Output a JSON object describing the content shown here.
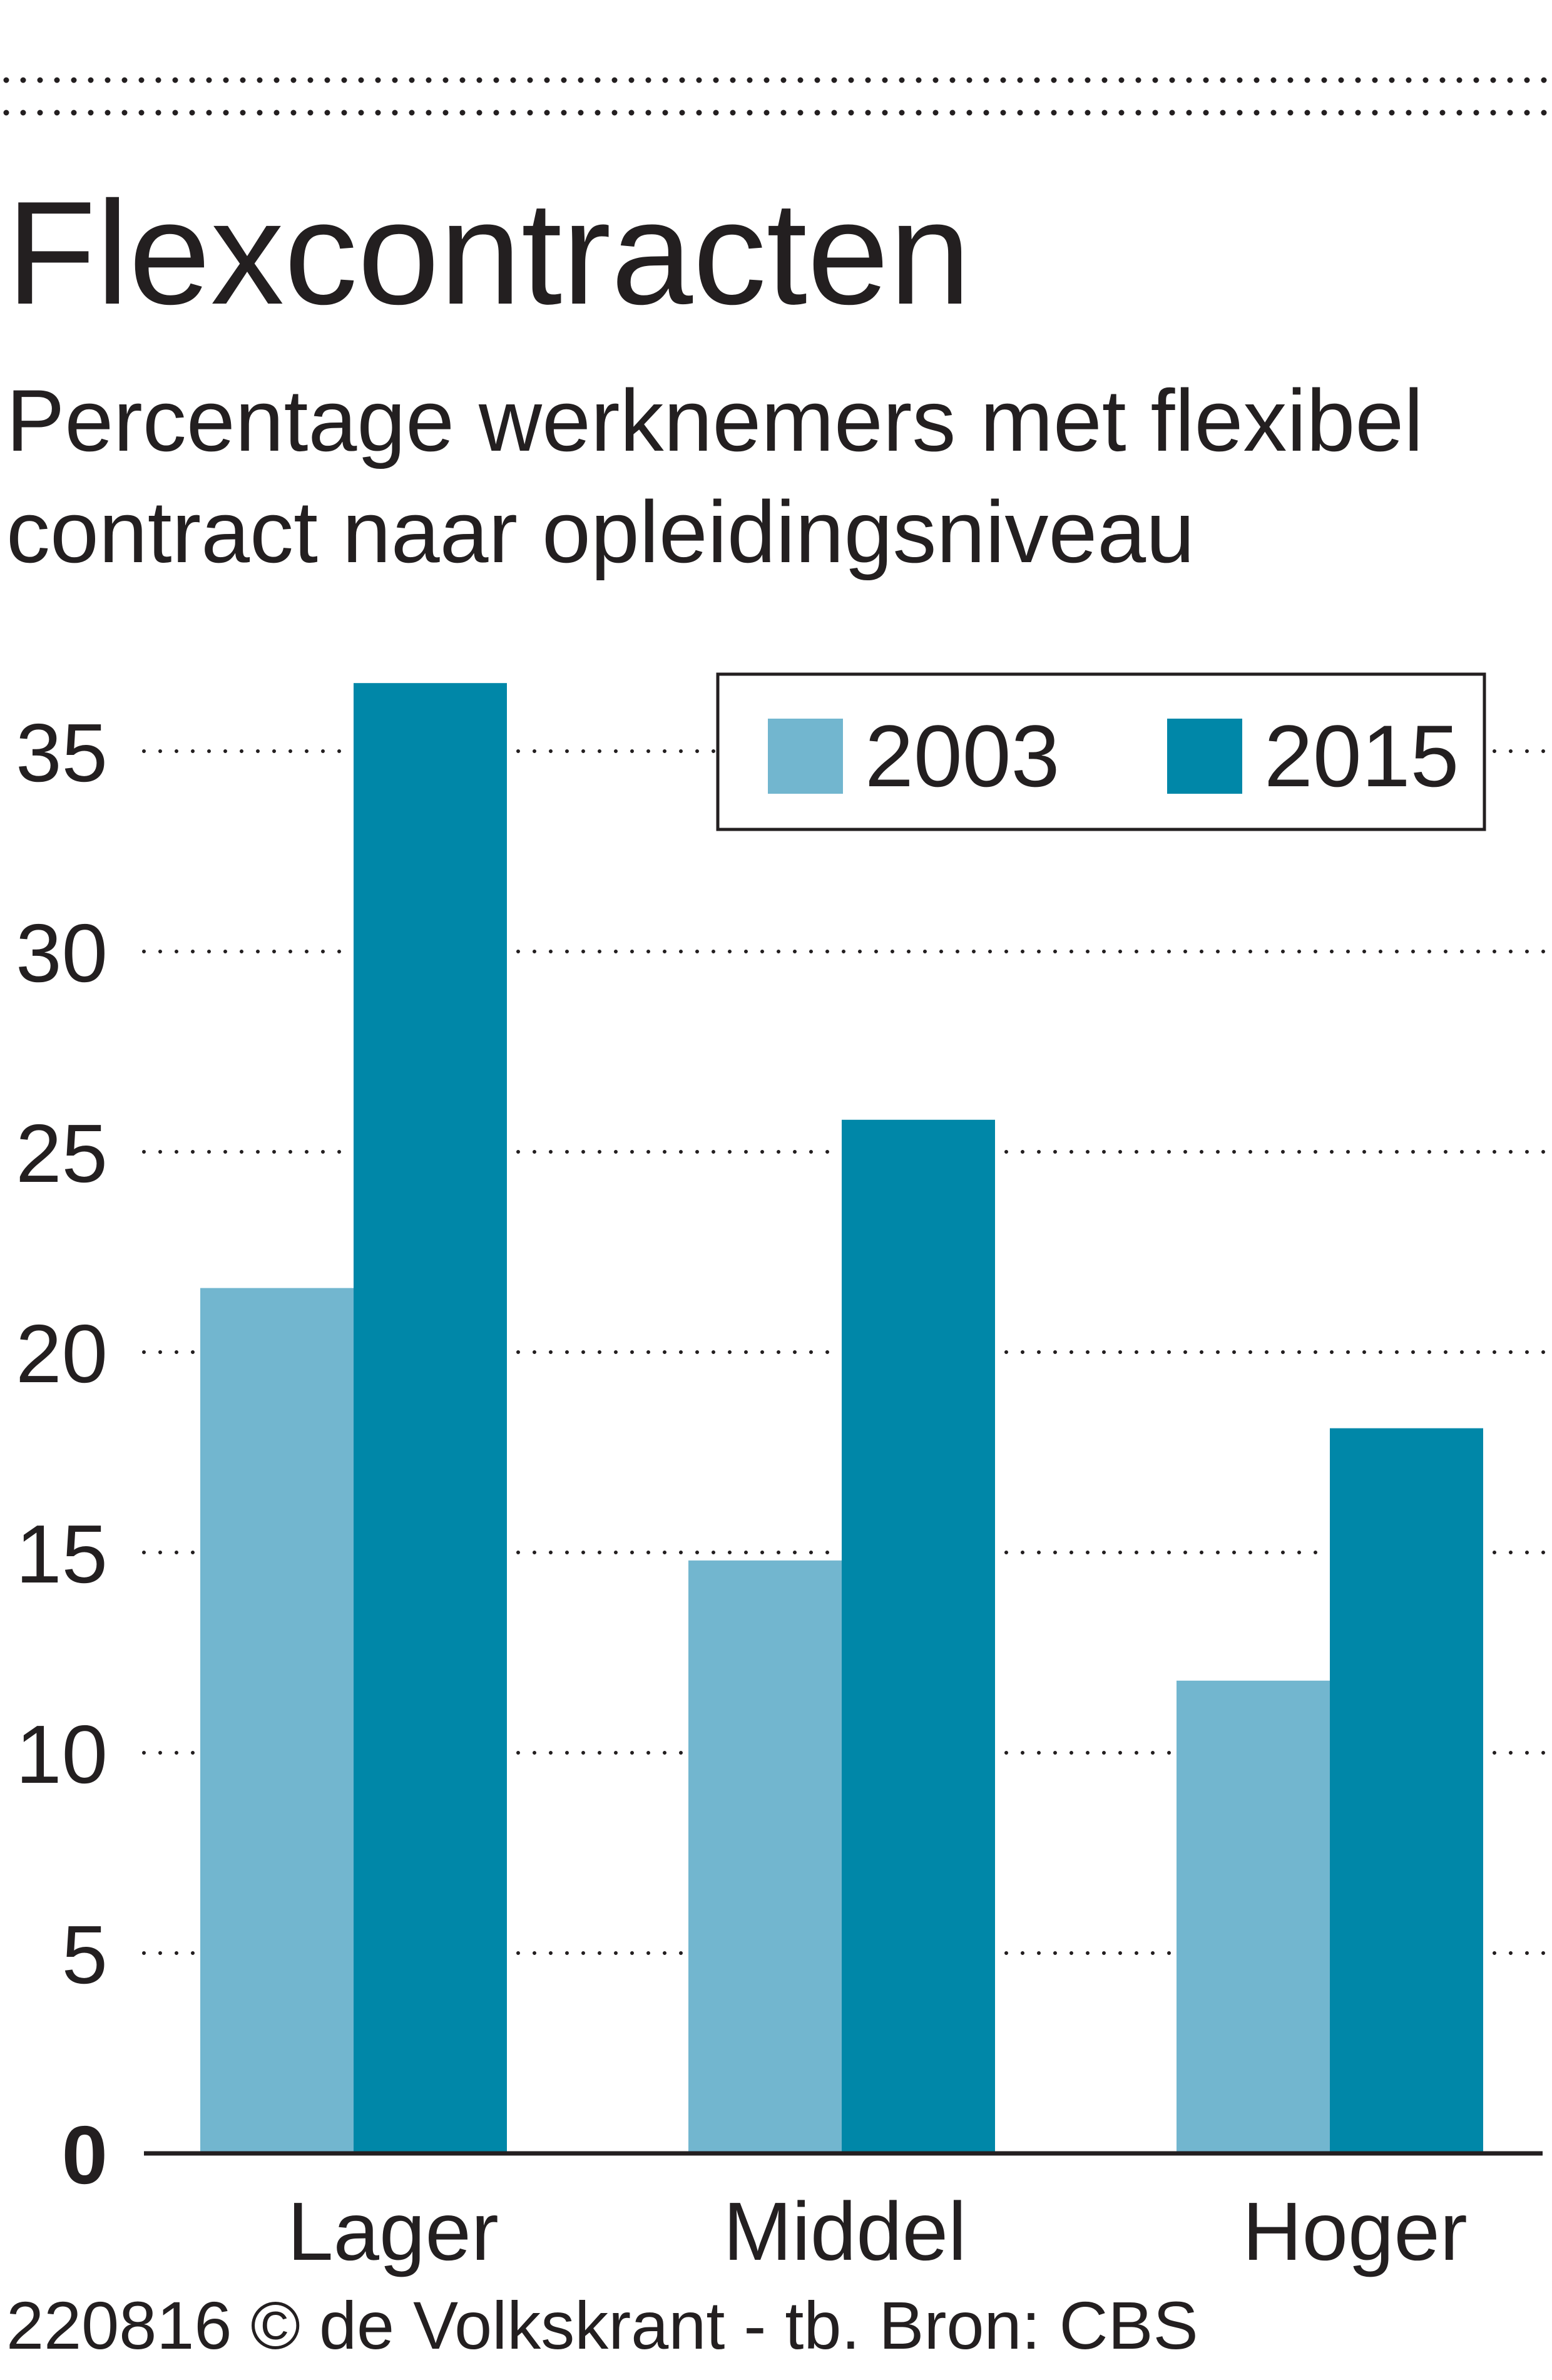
{
  "chart_data": {
    "type": "bar",
    "title": "Flexcontracten",
    "subtitle_lines": [
      "Percentage werknemers met flexibel",
      "contract naar opleidingsniveau"
    ],
    "categories": [
      "Lager",
      "Middel",
      "Hoger"
    ],
    "series": [
      {
        "name": "2003",
        "values": [
          21.6,
          14.8,
          11.8
        ]
      },
      {
        "name": "2015",
        "values": [
          36.7,
          25.8,
          18.1
        ]
      }
    ],
    "y_ticks": [
      "0",
      "5",
      "10",
      "15",
      "20",
      "25",
      "30",
      "35"
    ],
    "ylim": [
      0,
      37
    ],
    "xlabel": "",
    "ylabel": "",
    "grid": true,
    "legend_position": "top-right",
    "colors": {
      "2003": "#72b6cf",
      "2015": "#0087a8"
    },
    "source": "220816 © de Volkskrant - tb. Bron: CBS"
  }
}
